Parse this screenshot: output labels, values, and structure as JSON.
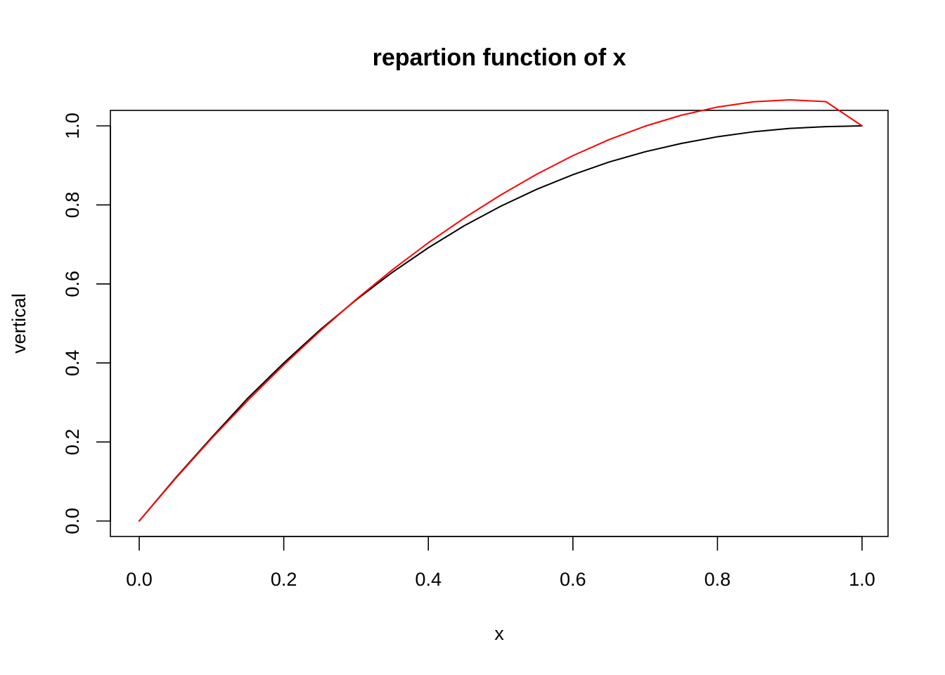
{
  "chart_data": {
    "type": "line",
    "title": "repartion function of x",
    "xlabel": "x",
    "ylabel": "vertical",
    "xlim": [
      0.0,
      1.0
    ],
    "ylim": [
      0.0,
      1.0
    ],
    "x_ticks": [
      "0.0",
      "0.2",
      "0.4",
      "0.6",
      "0.8",
      "1.0"
    ],
    "y_ticks": [
      "0.0",
      "0.2",
      "0.4",
      "0.6",
      "0.8",
      "1.0"
    ],
    "grid": false,
    "legend": "none",
    "series": [
      {
        "color": "#000000",
        "x": [
          0.0,
          0.05,
          0.1,
          0.15,
          0.2,
          0.25,
          0.3,
          0.35,
          0.4,
          0.45,
          0.5,
          0.55,
          0.6,
          0.65,
          0.7,
          0.75,
          0.8,
          0.85,
          0.9,
          0.95,
          1.0
        ],
        "y": [
          0.0,
          0.1085,
          0.211,
          0.3105,
          0.4,
          0.4835,
          0.5595,
          0.629,
          0.6915,
          0.7475,
          0.7965,
          0.8395,
          0.8765,
          0.9085,
          0.9345,
          0.9555,
          0.9725,
          0.985,
          0.9935,
          0.998,
          1.0
        ]
      },
      {
        "color": "#ff0000",
        "x": [
          0.0,
          0.05,
          0.1,
          0.15,
          0.2,
          0.25,
          0.3,
          0.35,
          0.4,
          0.45,
          0.5,
          0.55,
          0.6,
          0.65,
          0.7,
          0.75,
          0.8,
          0.85,
          0.9,
          0.95,
          1.0
        ],
        "y": [
          0.0,
          0.1071,
          0.2087,
          0.3047,
          0.3952,
          0.4805,
          0.5607,
          0.6353,
          0.7042,
          0.7671,
          0.825,
          0.8777,
          0.9246,
          0.9652,
          0.9993,
          1.0269,
          1.0476,
          1.0609,
          1.0658,
          1.0614,
          1.0
        ]
      }
    ]
  }
}
